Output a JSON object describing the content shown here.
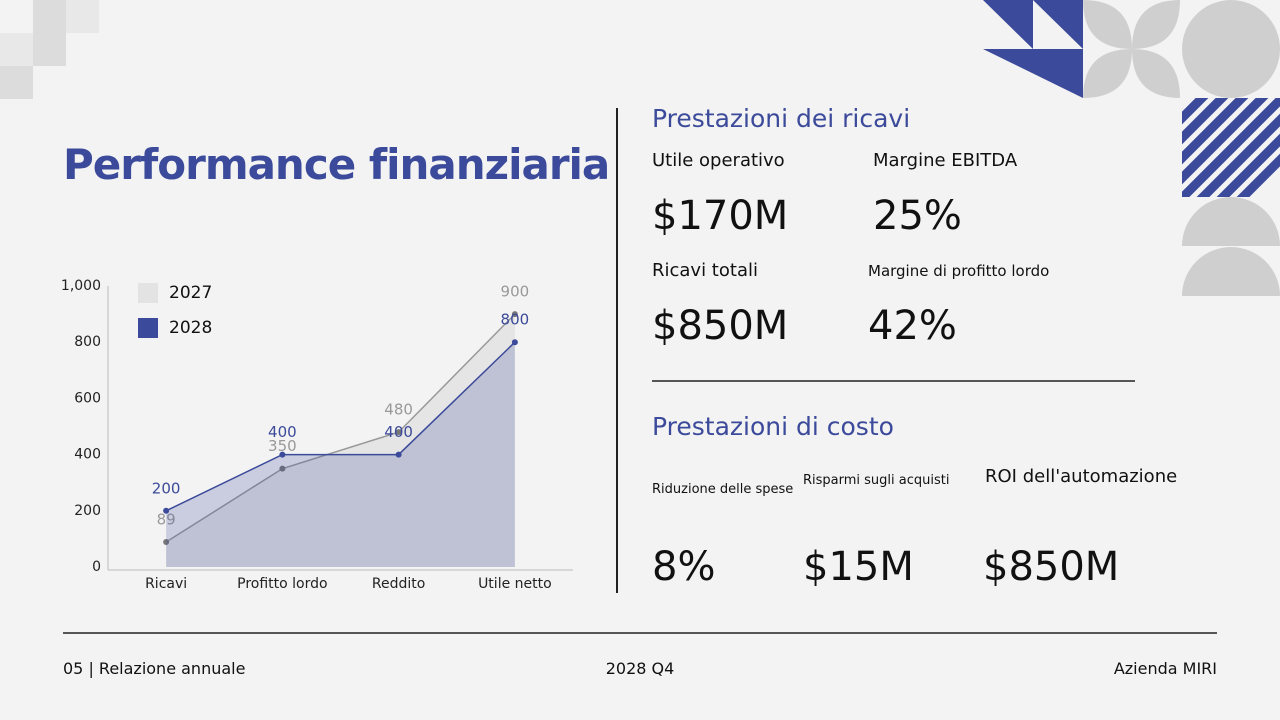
{
  "header": {
    "title": "Performance finanziaria"
  },
  "chart_data": {
    "type": "area",
    "categories": [
      "Ricavi",
      "Profitto lordo",
      "Reddito",
      "Utile netto"
    ],
    "series": [
      {
        "name": "2027",
        "color": "#e3e3e3",
        "values": [
          89,
          350,
          480,
          900
        ]
      },
      {
        "name": "2028",
        "color": "#3b4a9a",
        "values": [
          200,
          400,
          400,
          800
        ]
      }
    ],
    "ylim": [
      0,
      1000
    ],
    "yticks": [
      0,
      200,
      400,
      600,
      800,
      {
        "value": 1000,
        "label": "1,000"
      }
    ],
    "legend": "upper left"
  },
  "revenue": {
    "title": "Prestazioni dei ricavi",
    "metrics": [
      {
        "label": "Utile operativo",
        "value": "$170M"
      },
      {
        "label": "Margine EBITDA",
        "value": "25%"
      },
      {
        "label": "Ricavi totali",
        "value": "$850M"
      },
      {
        "label": "Margine di profitto lordo",
        "value": "42%"
      }
    ]
  },
  "cost": {
    "title": "Prestazioni di costo",
    "metrics": [
      {
        "label": "Riduzione delle spese",
        "value": "8%"
      },
      {
        "label": "Risparmi sugli acquisti",
        "value": "$15M"
      },
      {
        "label": "ROI dell'automazione",
        "value": "$850M"
      }
    ]
  },
  "footer": {
    "left": "05 | Relazione annuale",
    "center": "2028 Q4",
    "right": "Azienda MIRI"
  }
}
